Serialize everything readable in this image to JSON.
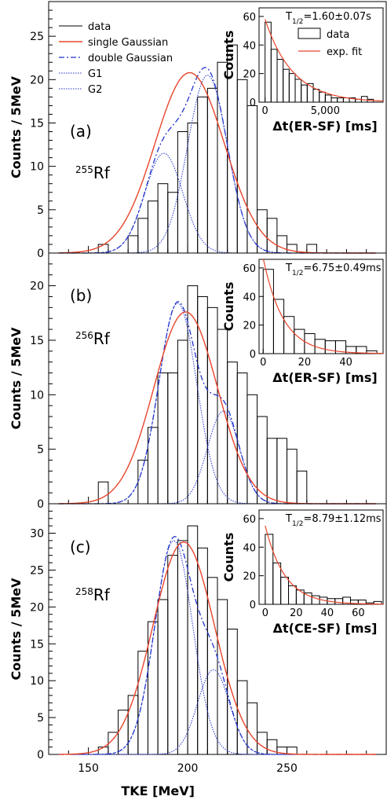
{
  "figure": {
    "x_label": "TKE [MeV]",
    "x_range": [
      130,
      300
    ],
    "x_ticks": [
      150,
      200,
      250
    ],
    "colors": {
      "data": "#000000",
      "single_gaussian": "#e8452c",
      "double_gaussian": "#2233cc",
      "g1": "#2233cc",
      "g2": "#2233cc"
    },
    "legend": {
      "location": "upper left of panel (a)",
      "entries": [
        {
          "key": "data",
          "label": "data"
        },
        {
          "key": "single_gaussian",
          "label": "single Gaussian"
        },
        {
          "key": "double_gaussian",
          "label": "double Gaussian"
        },
        {
          "key": "g1",
          "label": "G1"
        },
        {
          "key": "g2",
          "label": "G2"
        }
      ]
    }
  },
  "chart_data": [
    {
      "type": "histogram",
      "panel_label": "(a)",
      "isotope_mass": "255",
      "isotope_symbol": "Rf",
      "ylabel": "Counts / 5MeV",
      "ylim": [
        0,
        29
      ],
      "y_ticks": [
        0,
        5,
        10,
        15,
        20,
        25
      ],
      "bin_width": 5,
      "bins_start": 155,
      "counts": [
        1,
        0,
        0,
        2,
        4,
        6,
        8,
        7,
        14,
        15,
        18,
        19,
        22,
        24,
        20,
        17,
        5,
        4,
        2,
        1,
        0,
        1
      ],
      "single_gaussian": {
        "amp": 20.8,
        "mu": 201.0,
        "sigma": 17.5
      },
      "g1": {
        "amp": 11.5,
        "mu": 188.0,
        "sigma": 9.5
      },
      "g2": {
        "amp": 20.5,
        "mu": 210.0,
        "sigma": 10.0
      },
      "inset": {
        "type": "histogram",
        "xlabel": "Δt(ER-SF) [ms]",
        "ylabel": "Counts",
        "x_range": [
          -500,
          9800
        ],
        "ylim": [
          0,
          66
        ],
        "x_ticks": [
          0,
          5000
        ],
        "x_tick_labels": [
          "0",
          "5,000"
        ],
        "y_ticks": [
          0,
          20,
          40,
          60
        ],
        "bin_width": 500,
        "bins_start": 0,
        "counts": [
          56,
          37,
          30,
          23,
          20,
          16,
          12,
          13,
          9,
          7,
          5,
          3,
          3,
          3,
          3,
          2,
          4,
          2
        ],
        "fit": {
          "amp": 58,
          "tau": 2300
        },
        "half_life_prefix": "T",
        "half_life_sub": "1/2",
        "half_life_value": "=1.60±0.07s",
        "legend": [
          {
            "key": "data",
            "label": "data"
          },
          {
            "key": "fit",
            "label": "exp. fit"
          }
        ]
      }
    },
    {
      "type": "histogram",
      "panel_label": "(b)",
      "isotope_mass": "256",
      "isotope_symbol": "Rf",
      "ylabel": "Counts / 5MeV",
      "ylim": [
        0,
        23
      ],
      "y_ticks": [
        0,
        5,
        10,
        15,
        20
      ],
      "bin_width": 5,
      "bins_start": 155,
      "counts": [
        2,
        0,
        0,
        0,
        4,
        7,
        12,
        12,
        15,
        20,
        19,
        18,
        16,
        13,
        12,
        10,
        8,
        6,
        6,
        5,
        3
      ],
      "single_gaussian": {
        "amp": 17.6,
        "mu": 199.0,
        "sigma": 16.0
      },
      "g1": {
        "amp": 18.4,
        "mu": 195.0,
        "sigma": 9.5
      },
      "g2": {
        "amp": 8.5,
        "mu": 218.0,
        "sigma": 8.0
      },
      "inset": {
        "type": "histogram",
        "xlabel": "Δt(ER-SF) [ms]",
        "ylabel": "Counts",
        "x_range": [
          -2,
          58
        ],
        "ylim": [
          0,
          66
        ],
        "x_ticks": [
          0,
          20,
          40
        ],
        "x_tick_labels": [
          "0",
          "20",
          "40"
        ],
        "y_ticks": [
          0,
          20,
          40,
          60
        ],
        "bin_width": 5,
        "bins_start": 0,
        "counts": [
          59,
          38,
          26,
          17,
          14,
          10,
          9,
          9,
          5,
          5,
          2
        ],
        "fit": {
          "amp": 67,
          "tau": 9.7
        },
        "half_life_prefix": "T",
        "half_life_sub": "1/2",
        "half_life_value": "=6.75±0.49ms"
      }
    },
    {
      "type": "histogram",
      "panel_label": "(c)",
      "isotope_mass": "258",
      "isotope_symbol": "Rf",
      "ylabel": "Counts / 5MeV",
      "ylim": [
        0,
        34
      ],
      "y_ticks": [
        0,
        5,
        10,
        15,
        20,
        25,
        30
      ],
      "bin_width": 5,
      "bins_start": 155,
      "counts": [
        1,
        3,
        6,
        8,
        14,
        18,
        21,
        27,
        29,
        31,
        28,
        24,
        21,
        17,
        10,
        7,
        3,
        2,
        1,
        1,
        0,
        0
      ],
      "single_gaussian": {
        "amp": 28.8,
        "mu": 198.0,
        "sigma": 15.5
      },
      "g1": {
        "amp": 29.0,
        "mu": 193.0,
        "sigma": 9.5
      },
      "g2": {
        "amp": 11.5,
        "mu": 213.0,
        "sigma": 8.0
      },
      "inset": {
        "type": "histogram",
        "xlabel": "Δt(CE-SF) [ms]",
        "ylabel": "Counts",
        "x_range": [
          -4,
          76
        ],
        "ylim": [
          0,
          66
        ],
        "x_ticks": [
          0,
          20,
          40,
          60
        ],
        "x_tick_labels": [
          "0",
          "20",
          "40",
          "60"
        ],
        "y_ticks": [
          0,
          20,
          40,
          60
        ],
        "bin_width": 5,
        "bins_start": 0,
        "counts": [
          49,
          29,
          19,
          13,
          10,
          8,
          6,
          5,
          4,
          4,
          5,
          3,
          3,
          1,
          2
        ],
        "fit": {
          "amp": 55,
          "tau": 12.7
        },
        "half_life_prefix": "T",
        "half_life_sub": "1/2",
        "half_life_value": "=8.79±1.12ms"
      }
    }
  ]
}
